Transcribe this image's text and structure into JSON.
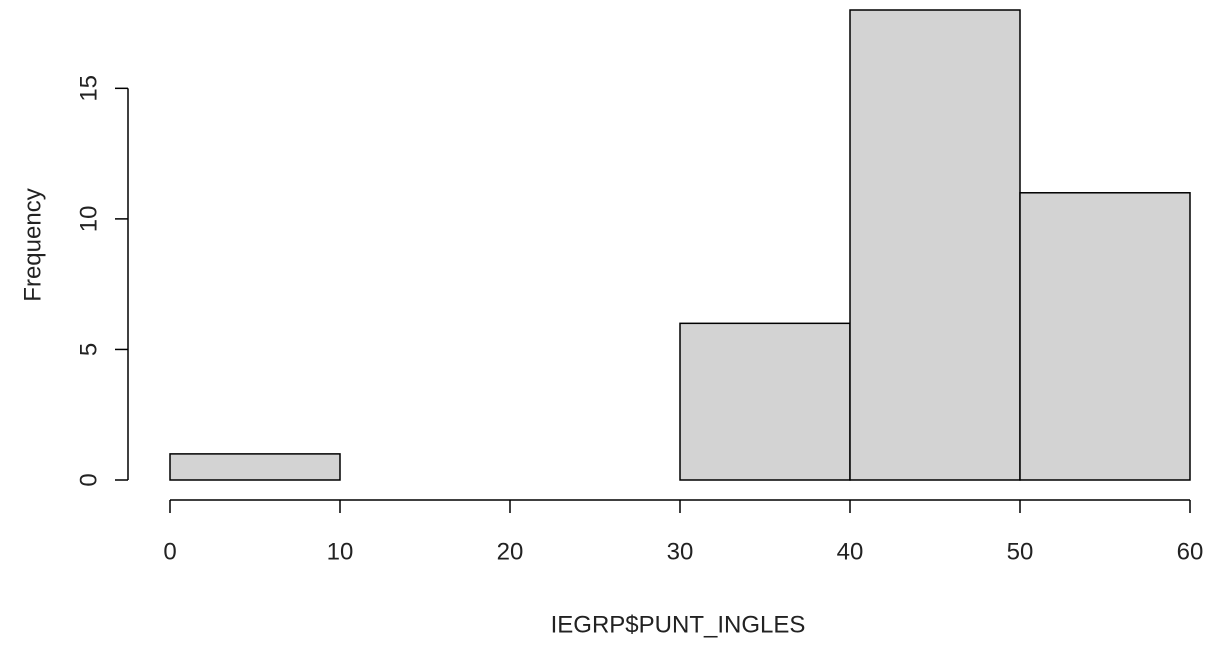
{
  "chart_data": {
    "type": "histogram",
    "x_label": "IEGRP$PUNT_INGLES",
    "y_label": "Frequency",
    "bins": [
      0,
      10,
      20,
      30,
      40,
      50,
      60
    ],
    "counts": [
      1,
      0,
      0,
      6,
      18,
      11
    ],
    "color": "#d3d3d3",
    "xlim": [
      0,
      60
    ],
    "xticks": [
      0,
      10,
      20,
      30,
      40,
      50,
      60
    ],
    "ylim": [
      0,
      18
    ],
    "yticks": [
      0,
      5,
      10,
      15
    ]
  }
}
